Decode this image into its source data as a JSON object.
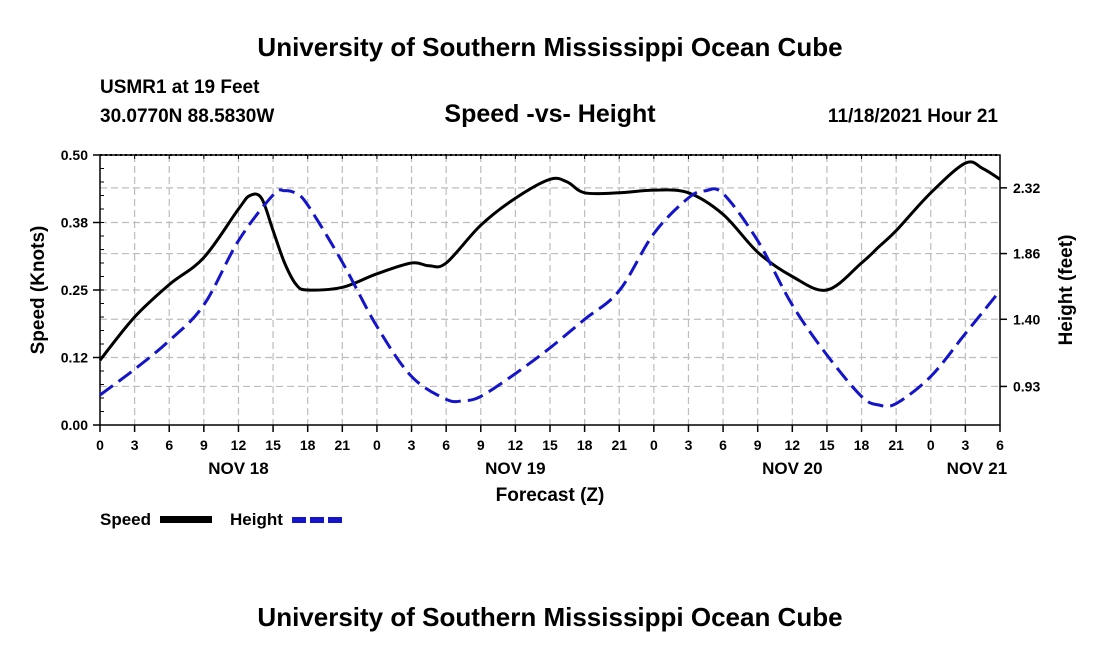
{
  "header": {
    "org_title_top": "University of Southern Mississippi Ocean Cube",
    "org_title_bottom": "University of Southern Mississippi Ocean Cube",
    "station": "USMR1 at 19 Feet",
    "coords": "30.0770N  88.5830W",
    "datetime": "11/18/2021 Hour 21"
  },
  "legend": {
    "speed_label": "Speed",
    "height_label": "Height",
    "speed_color": "#000000",
    "height_color": "#1414c8"
  },
  "chart_data": {
    "type": "line",
    "title": "Speed -vs- Height",
    "xlabel": "Forecast (Z)",
    "ylabel_left": "Speed (Knots)",
    "ylabel_right": "Height (feet)",
    "x_range_hours": [
      0,
      78
    ],
    "x_tick_step_hours": 3,
    "x_tick_labels": [
      "0",
      "3",
      "6",
      "9",
      "12",
      "15",
      "18",
      "21",
      "0",
      "3",
      "6",
      "9",
      "12",
      "15",
      "18",
      "21",
      "0",
      "3",
      "6",
      "9",
      "12",
      "15",
      "18",
      "21",
      "0",
      "3",
      "6"
    ],
    "date_labels": [
      {
        "hour": 12,
        "label": "NOV 18"
      },
      {
        "hour": 36,
        "label": "NOV 19"
      },
      {
        "hour": 60,
        "label": "NOV 20"
      },
      {
        "hour": 76,
        "label": "NOV 21"
      }
    ],
    "ylim_left": [
      0,
      0.5
    ],
    "left_ticks": [
      {
        "value": 0.0,
        "label": "0.00"
      },
      {
        "value": 0.125,
        "label": "0.12"
      },
      {
        "value": 0.25,
        "label": "0.25"
      },
      {
        "value": 0.375,
        "label": "0.38"
      },
      {
        "value": 0.5,
        "label": "0.50"
      }
    ],
    "ylim_right": [
      0.66,
      2.55
    ],
    "right_ticks": [
      {
        "value": 0.93,
        "label": "0.93"
      },
      {
        "value": 1.4,
        "label": "1.40"
      },
      {
        "value": 1.86,
        "label": "1.86"
      },
      {
        "value": 2.32,
        "label": "2.32"
      }
    ],
    "grid": true,
    "series": [
      {
        "name": "Speed",
        "axis": "left",
        "style": "solid",
        "color": "#000000",
        "x": [
          0,
          3,
          6,
          9,
          12,
          13,
          14,
          15,
          16,
          17,
          18,
          21,
          24,
          27,
          28.5,
          30,
          33,
          36,
          39,
          40.5,
          42,
          45,
          48,
          51,
          54,
          57,
          60,
          63,
          66,
          67.5,
          69,
          72,
          75,
          76.5,
          78
        ],
        "y": [
          0.12,
          0.2,
          0.26,
          0.31,
          0.4,
          0.425,
          0.42,
          0.36,
          0.3,
          0.26,
          0.25,
          0.255,
          0.28,
          0.3,
          0.295,
          0.3,
          0.37,
          0.42,
          0.455,
          0.45,
          0.43,
          0.43,
          0.435,
          0.43,
          0.39,
          0.32,
          0.275,
          0.25,
          0.3,
          0.33,
          0.36,
          0.43,
          0.485,
          0.475,
          0.455
        ]
      },
      {
        "name": "Height",
        "axis": "right",
        "style": "dashed",
        "color": "#1414c8",
        "x": [
          0,
          3,
          6,
          9,
          12,
          15,
          16,
          17,
          18,
          21,
          24,
          27,
          30,
          31.5,
          33,
          36,
          39,
          42,
          45,
          48,
          51,
          52.5,
          54,
          57,
          60,
          63,
          66,
          67.5,
          69,
          72,
          75,
          78
        ],
        "y": [
          0.87,
          1.05,
          1.25,
          1.5,
          1.95,
          2.27,
          2.3,
          2.28,
          2.2,
          1.8,
          1.35,
          1.0,
          0.84,
          0.83,
          0.86,
          1.02,
          1.2,
          1.4,
          1.6,
          2.0,
          2.25,
          2.3,
          2.28,
          1.95,
          1.5,
          1.15,
          0.86,
          0.8,
          0.81,
          1.0,
          1.3,
          1.6
        ]
      }
    ]
  }
}
